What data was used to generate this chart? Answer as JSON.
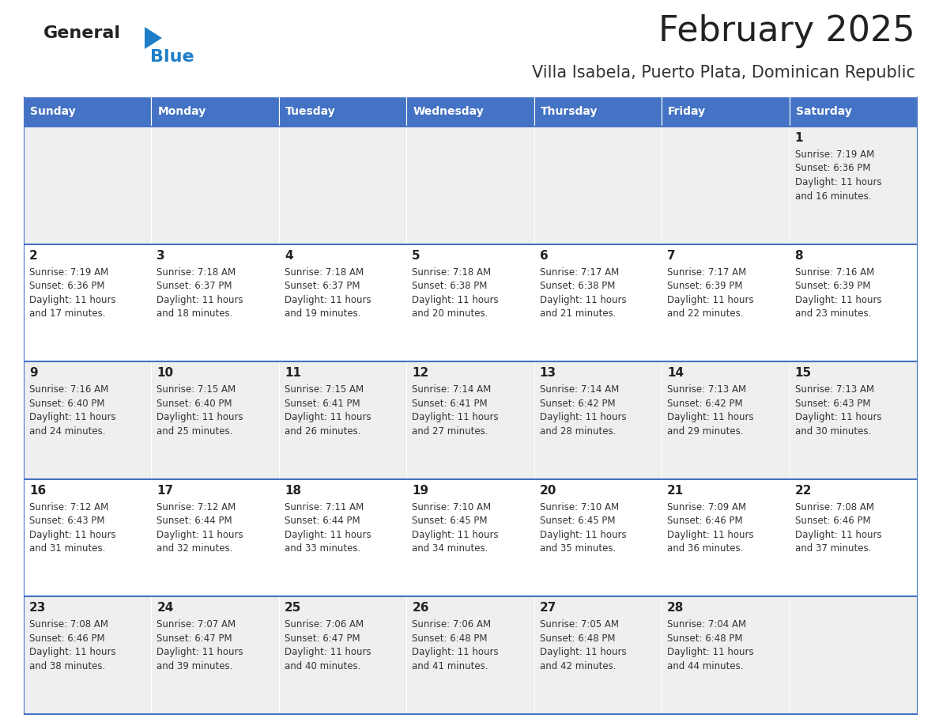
{
  "title": "February 2025",
  "subtitle": "Villa Isabela, Puerto Plata, Dominican Republic",
  "header_bg": "#4472C4",
  "header_text_color": "#FFFFFF",
  "row_bg_odd": "#EFEFEF",
  "row_bg_even": "#FFFFFF",
  "cell_border_color": "#4472C4",
  "day_headers": [
    "Sunday",
    "Monday",
    "Tuesday",
    "Wednesday",
    "Thursday",
    "Friday",
    "Saturday"
  ],
  "title_color": "#222222",
  "subtitle_color": "#333333",
  "day_number_color": "#222222",
  "cell_text_color": "#333333",
  "logo_general_color": "#222222",
  "logo_blue_color": "#1E7EC8",
  "calendar_data": [
    [
      null,
      null,
      null,
      null,
      null,
      null,
      {
        "day": 1,
        "sunrise": "7:19 AM",
        "sunset": "6:36 PM",
        "daylight": "11 hours and 16 minutes."
      }
    ],
    [
      {
        "day": 2,
        "sunrise": "7:19 AM",
        "sunset": "6:36 PM",
        "daylight": "11 hours and 17 minutes."
      },
      {
        "day": 3,
        "sunrise": "7:18 AM",
        "sunset": "6:37 PM",
        "daylight": "11 hours and 18 minutes."
      },
      {
        "day": 4,
        "sunrise": "7:18 AM",
        "sunset": "6:37 PM",
        "daylight": "11 hours and 19 minutes."
      },
      {
        "day": 5,
        "sunrise": "7:18 AM",
        "sunset": "6:38 PM",
        "daylight": "11 hours and 20 minutes."
      },
      {
        "day": 6,
        "sunrise": "7:17 AM",
        "sunset": "6:38 PM",
        "daylight": "11 hours and 21 minutes."
      },
      {
        "day": 7,
        "sunrise": "7:17 AM",
        "sunset": "6:39 PM",
        "daylight": "11 hours and 22 minutes."
      },
      {
        "day": 8,
        "sunrise": "7:16 AM",
        "sunset": "6:39 PM",
        "daylight": "11 hours and 23 minutes."
      }
    ],
    [
      {
        "day": 9,
        "sunrise": "7:16 AM",
        "sunset": "6:40 PM",
        "daylight": "11 hours and 24 minutes."
      },
      {
        "day": 10,
        "sunrise": "7:15 AM",
        "sunset": "6:40 PM",
        "daylight": "11 hours and 25 minutes."
      },
      {
        "day": 11,
        "sunrise": "7:15 AM",
        "sunset": "6:41 PM",
        "daylight": "11 hours and 26 minutes."
      },
      {
        "day": 12,
        "sunrise": "7:14 AM",
        "sunset": "6:41 PM",
        "daylight": "11 hours and 27 minutes."
      },
      {
        "day": 13,
        "sunrise": "7:14 AM",
        "sunset": "6:42 PM",
        "daylight": "11 hours and 28 minutes."
      },
      {
        "day": 14,
        "sunrise": "7:13 AM",
        "sunset": "6:42 PM",
        "daylight": "11 hours and 29 minutes."
      },
      {
        "day": 15,
        "sunrise": "7:13 AM",
        "sunset": "6:43 PM",
        "daylight": "11 hours and 30 minutes."
      }
    ],
    [
      {
        "day": 16,
        "sunrise": "7:12 AM",
        "sunset": "6:43 PM",
        "daylight": "11 hours and 31 minutes."
      },
      {
        "day": 17,
        "sunrise": "7:12 AM",
        "sunset": "6:44 PM",
        "daylight": "11 hours and 32 minutes."
      },
      {
        "day": 18,
        "sunrise": "7:11 AM",
        "sunset": "6:44 PM",
        "daylight": "11 hours and 33 minutes."
      },
      {
        "day": 19,
        "sunrise": "7:10 AM",
        "sunset": "6:45 PM",
        "daylight": "11 hours and 34 minutes."
      },
      {
        "day": 20,
        "sunrise": "7:10 AM",
        "sunset": "6:45 PM",
        "daylight": "11 hours and 35 minutes."
      },
      {
        "day": 21,
        "sunrise": "7:09 AM",
        "sunset": "6:46 PM",
        "daylight": "11 hours and 36 minutes."
      },
      {
        "day": 22,
        "sunrise": "7:08 AM",
        "sunset": "6:46 PM",
        "daylight": "11 hours and 37 minutes."
      }
    ],
    [
      {
        "day": 23,
        "sunrise": "7:08 AM",
        "sunset": "6:46 PM",
        "daylight": "11 hours and 38 minutes."
      },
      {
        "day": 24,
        "sunrise": "7:07 AM",
        "sunset": "6:47 PM",
        "daylight": "11 hours and 39 minutes."
      },
      {
        "day": 25,
        "sunrise": "7:06 AM",
        "sunset": "6:47 PM",
        "daylight": "11 hours and 40 minutes."
      },
      {
        "day": 26,
        "sunrise": "7:06 AM",
        "sunset": "6:48 PM",
        "daylight": "11 hours and 41 minutes."
      },
      {
        "day": 27,
        "sunrise": "7:05 AM",
        "sunset": "6:48 PM",
        "daylight": "11 hours and 42 minutes."
      },
      {
        "day": 28,
        "sunrise": "7:04 AM",
        "sunset": "6:48 PM",
        "daylight": "11 hours and 44 minutes."
      },
      null
    ]
  ]
}
